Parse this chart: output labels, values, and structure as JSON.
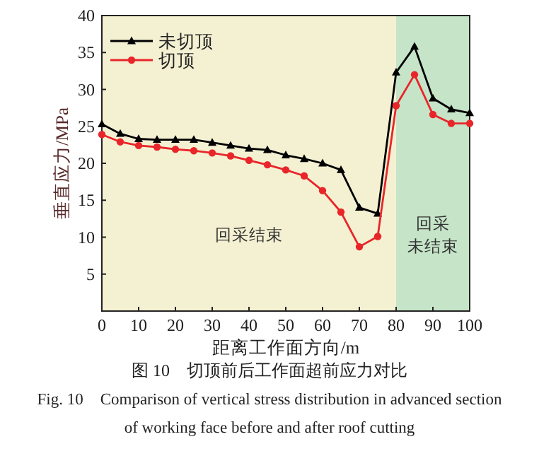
{
  "chart_data": {
    "type": "line",
    "title": "图 10　切顶前后工作面超前应力对比",
    "subtitle": "Fig. 10　Comparison of vertical stress distribution in advanced section of working face before and after roof cutting",
    "xlabel": "距离工作面方向/m",
    "ylabel": "垂直应力/MPa",
    "x": [
      0,
      5,
      10,
      15,
      20,
      25,
      30,
      35,
      40,
      45,
      50,
      55,
      60,
      65,
      70,
      75,
      80,
      85,
      90,
      95,
      100
    ],
    "series": [
      {
        "name": "未切顶",
        "color": "#000000",
        "marker": "triangle",
        "values": [
          25.3,
          24.0,
          23.3,
          23.2,
          23.2,
          23.2,
          22.8,
          22.4,
          22.0,
          21.8,
          21.1,
          20.6,
          20.0,
          19.1,
          14.0,
          13.2,
          32.3,
          35.8,
          28.8,
          27.3,
          26.8
        ]
      },
      {
        "name": "切顶",
        "color": "#e8262a",
        "marker": "circle",
        "values": [
          23.9,
          22.9,
          22.4,
          22.2,
          21.9,
          21.7,
          21.4,
          21.0,
          20.4,
          19.8,
          19.1,
          18.3,
          16.3,
          13.4,
          8.7,
          10.1,
          27.8,
          32.0,
          26.6,
          25.4,
          25.4
        ]
      }
    ],
    "bands": [
      {
        "axis": "x",
        "from": 0,
        "to": 80,
        "label": "回采结束",
        "color": "#f4f1d2"
      },
      {
        "axis": "x",
        "from": 80,
        "to": 100,
        "label": "回采未结束",
        "color": "#c6e4c8"
      }
    ],
    "xlim": [
      0,
      100
    ],
    "ylim": [
      0,
      40
    ],
    "xticks": [
      0,
      10,
      20,
      30,
      40,
      50,
      60,
      70,
      80,
      90,
      100
    ],
    "yticks": [
      5,
      10,
      15,
      20,
      25,
      30,
      35,
      40
    ],
    "grid": false,
    "legend": "top left",
    "line_style": "solid"
  }
}
